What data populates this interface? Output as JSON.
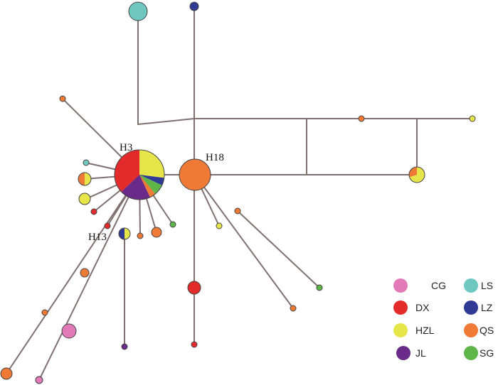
{
  "colors": {
    "CG": "#e37ab8",
    "DX": "#e32b2b",
    "HZL": "#e6e64a",
    "JL": "#6a2a8a",
    "LS": "#6fc7c2",
    "LZ": "#2f3a94",
    "QS": "#ee7a36",
    "SG": "#5eb548",
    "edge": "#807070"
  },
  "labels": {
    "h3": "H3",
    "h18": "H18",
    "h13": "H13"
  },
  "legend": [
    {
      "code": "CG",
      "label": "CG"
    },
    {
      "code": "LS",
      "label": "LS"
    },
    {
      "code": "DX",
      "label": "DX"
    },
    {
      "code": "LZ",
      "label": "LZ"
    },
    {
      "code": "HZL",
      "label": "HZL"
    },
    {
      "code": "QS",
      "label": "QS"
    },
    {
      "code": "JL",
      "label": "JL"
    },
    {
      "code": "SG",
      "label": "SG"
    }
  ],
  "haplotype_composition": {
    "H3": [
      {
        "pop": "HZL",
        "share": 0.27
      },
      {
        "pop": "LZ",
        "share": 0.05
      },
      {
        "pop": "SG",
        "share": 0.07
      },
      {
        "pop": "QS",
        "share": 0.04
      },
      {
        "pop": "JL",
        "share": 0.2
      },
      {
        "pop": "DX",
        "share": 0.37
      }
    ],
    "H18": [
      {
        "pop": "QS",
        "share": 1.0
      }
    ],
    "H13": [
      {
        "pop": "HZL",
        "share": 0.5
      },
      {
        "pop": "LZ",
        "share": 0.5
      }
    ]
  }
}
